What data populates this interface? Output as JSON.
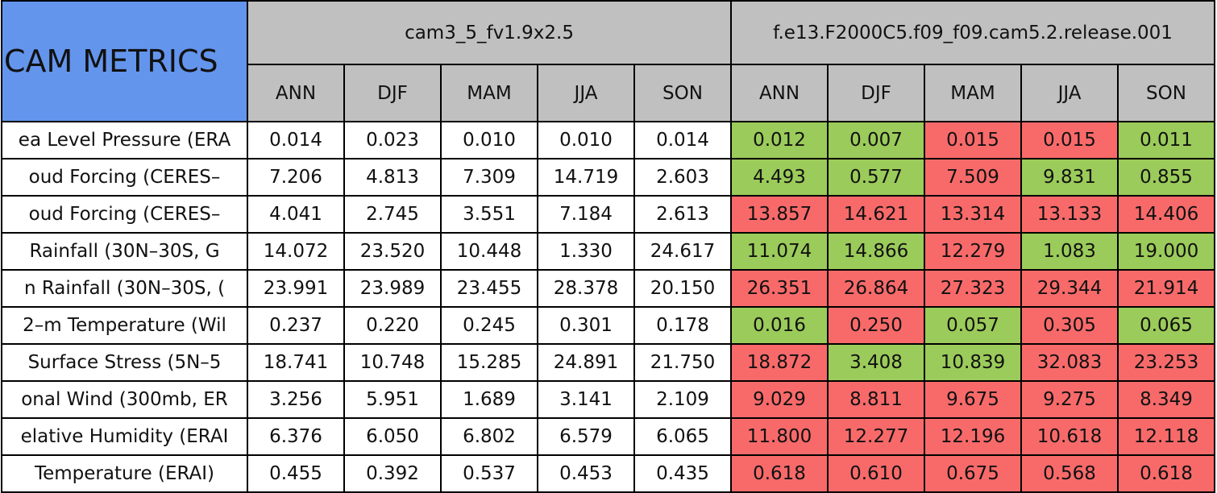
{
  "header": {
    "title": "CAM METRICS",
    "groups": [
      {
        "name": "cam3_5_fv1.9x2.5",
        "seasons": [
          "ANN",
          "DJF",
          "MAM",
          "JJA",
          "SON"
        ]
      },
      {
        "name": "f.e13.F2000C5.f09_f09.cam5.2.release.001",
        "seasons": [
          "ANN",
          "DJF",
          "MAM",
          "JJA",
          "SON"
        ]
      }
    ]
  },
  "palette": {
    "w": "#ffffff",
    "g": "#9bcb5a",
    "r": "#f86a6a"
  },
  "rows": [
    {
      "label": "ea Level Pressure (ERA",
      "values": [
        "0.014",
        "0.023",
        "0.010",
        "0.010",
        "0.014",
        "0.012",
        "0.007",
        "0.015",
        "0.015",
        "0.011"
      ],
      "colors": [
        "w",
        "w",
        "w",
        "w",
        "w",
        "g",
        "g",
        "r",
        "r",
        "g"
      ]
    },
    {
      "label": "oud Forcing (CERES–",
      "values": [
        "7.206",
        "4.813",
        "7.309",
        "14.719",
        "2.603",
        "4.493",
        "0.577",
        "7.509",
        "9.831",
        "0.855"
      ],
      "colors": [
        "w",
        "w",
        "w",
        "w",
        "w",
        "g",
        "g",
        "r",
        "g",
        "g"
      ]
    },
    {
      "label": "oud Forcing (CERES–",
      "values": [
        "4.041",
        "2.745",
        "3.551",
        "7.184",
        "2.613",
        "13.857",
        "14.621",
        "13.314",
        "13.133",
        "14.406"
      ],
      "colors": [
        "w",
        "w",
        "w",
        "w",
        "w",
        "r",
        "r",
        "r",
        "r",
        "r"
      ]
    },
    {
      "label": "Rainfall (30N–30S, G",
      "values": [
        "14.072",
        "23.520",
        "10.448",
        "1.330",
        "24.617",
        "11.074",
        "14.866",
        "12.279",
        "1.083",
        "19.000"
      ],
      "colors": [
        "w",
        "w",
        "w",
        "w",
        "w",
        "g",
        "g",
        "r",
        "g",
        "g"
      ]
    },
    {
      "label": "n Rainfall (30N–30S, (",
      "values": [
        "23.991",
        "23.989",
        "23.455",
        "28.378",
        "20.150",
        "26.351",
        "26.864",
        "27.323",
        "29.344",
        "21.914"
      ],
      "colors": [
        "w",
        "w",
        "w",
        "w",
        "w",
        "r",
        "r",
        "r",
        "r",
        "r"
      ]
    },
    {
      "label": "2–m Temperature (Wil",
      "values": [
        "0.237",
        "0.220",
        "0.245",
        "0.301",
        "0.178",
        "0.016",
        "0.250",
        "0.057",
        "0.305",
        "0.065"
      ],
      "colors": [
        "w",
        "w",
        "w",
        "w",
        "w",
        "g",
        "r",
        "g",
        "r",
        "g"
      ]
    },
    {
      "label": "Surface Stress (5N–5",
      "values": [
        "18.741",
        "10.748",
        "15.285",
        "24.891",
        "21.750",
        "18.872",
        "3.408",
        "10.839",
        "32.083",
        "23.253"
      ],
      "colors": [
        "w",
        "w",
        "w",
        "w",
        "w",
        "r",
        "g",
        "g",
        "r",
        "r"
      ]
    },
    {
      "label": "onal Wind (300mb, ER",
      "values": [
        "3.256",
        "5.951",
        "1.689",
        "3.141",
        "2.109",
        "9.029",
        "8.811",
        "9.675",
        "9.275",
        "8.349"
      ],
      "colors": [
        "w",
        "w",
        "w",
        "w",
        "w",
        "r",
        "r",
        "r",
        "r",
        "r"
      ]
    },
    {
      "label": "elative Humidity (ERAI",
      "values": [
        "6.376",
        "6.050",
        "6.802",
        "6.579",
        "6.065",
        "11.800",
        "12.277",
        "12.196",
        "10.618",
        "12.118"
      ],
      "colors": [
        "w",
        "w",
        "w",
        "w",
        "w",
        "r",
        "r",
        "r",
        "r",
        "r"
      ]
    },
    {
      "label": "Temperature (ERAI)",
      "values": [
        "0.455",
        "0.392",
        "0.537",
        "0.453",
        "0.435",
        "0.618",
        "0.610",
        "0.675",
        "0.568",
        "0.618"
      ],
      "colors": [
        "w",
        "w",
        "w",
        "w",
        "w",
        "r",
        "r",
        "r",
        "r",
        "r"
      ]
    }
  ]
}
